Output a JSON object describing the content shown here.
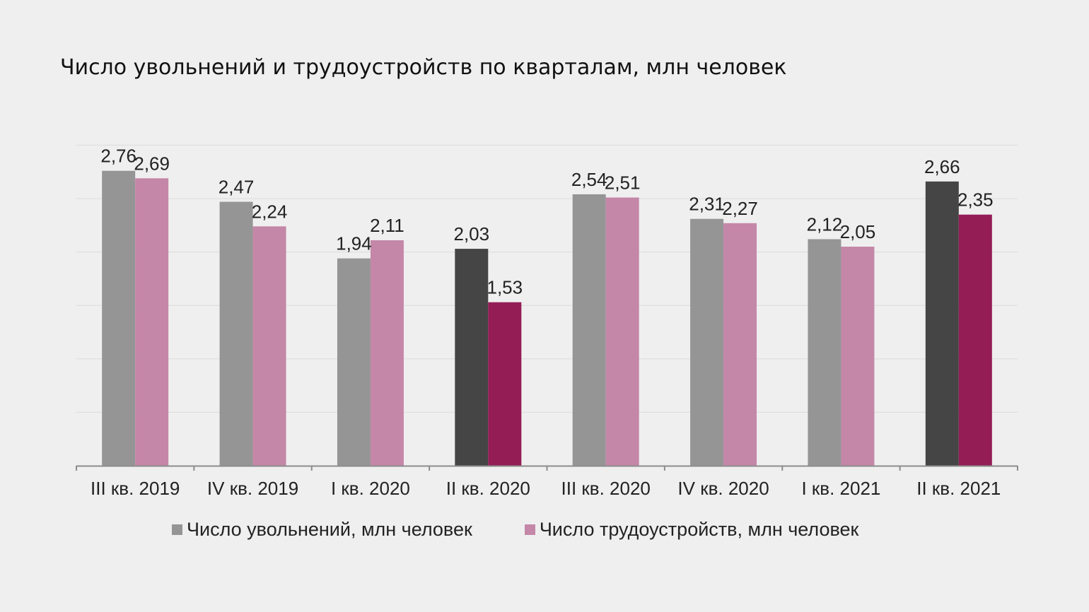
{
  "title": "Число увольнений и трудоустройств по кварталам, млн человек",
  "colors": {
    "dismissals": "#959595",
    "dismissals_highlight": "#454545",
    "hires": "#c487a8",
    "hires_highlight": "#941d56",
    "gridline": "#dcdcdc",
    "axis": "#8c8c8c",
    "text": "#222222"
  },
  "chart_data": {
    "type": "bar",
    "title": "Число увольнений и трудоустройств по кварталам, млн человек",
    "categories": [
      "III кв. 2019",
      "IV кв. 2019",
      "I кв. 2020",
      "II кв. 2020",
      "III кв. 2020",
      "IV кв. 2020",
      "I кв. 2021",
      "II кв. 2021"
    ],
    "value_labels": [
      [
        "2,76",
        "2,47",
        "1,94",
        "2,03",
        "2,54",
        "2,31",
        "2,12",
        "2,66"
      ],
      [
        "2,69",
        "2,24",
        "2,11",
        "1,53",
        "2,51",
        "2,27",
        "2,05",
        "2,35"
      ]
    ],
    "series": [
      {
        "name": "Число увольнений, млн человек",
        "values": [
          2.76,
          2.47,
          1.94,
          2.03,
          2.54,
          2.31,
          2.12,
          2.66
        ]
      },
      {
        "name": "Число трудоустройств, млн человек",
        "values": [
          2.69,
          2.24,
          2.11,
          1.53,
          2.51,
          2.27,
          2.05,
          2.35
        ]
      }
    ],
    "highlighted_categories": [
      "II кв. 2020",
      "II кв. 2021"
    ],
    "ylim": [
      0,
      3
    ],
    "grid": true,
    "legend_position": "bottom",
    "xlabel": "",
    "ylabel": ""
  }
}
